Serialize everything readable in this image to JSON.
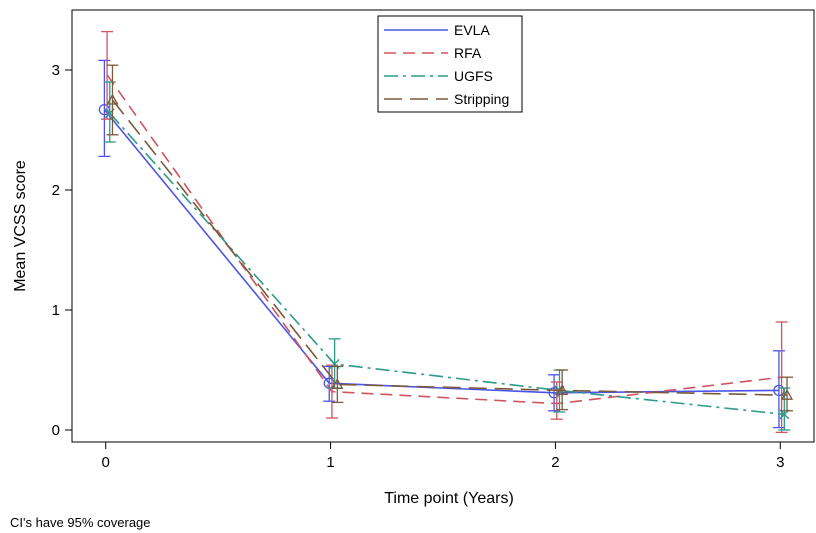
{
  "chart_data": {
    "type": "line",
    "title": "",
    "xlabel": "Time point (Years)",
    "ylabel": "Mean VCSS score",
    "x_ticks": [
      0,
      1,
      2,
      3
    ],
    "y_ticks": [
      0,
      1,
      2,
      3
    ],
    "xlim": [
      -0.15,
      3.15
    ],
    "ylim": [
      -0.1,
      3.5
    ],
    "grid": false,
    "legend_position": "top-center",
    "series": [
      {
        "name": "EVLA",
        "color": "#4a55e8",
        "dash": "solid",
        "marker": "circle",
        "offset": -0.006,
        "x": [
          0,
          1,
          2,
          3
        ],
        "y": [
          2.67,
          0.39,
          0.31,
          0.33
        ],
        "ci_low": [
          2.28,
          0.24,
          0.16,
          0.02
        ],
        "ci_high": [
          3.08,
          0.53,
          0.46,
          0.66
        ]
      },
      {
        "name": "RFA",
        "color": "#d05460",
        "dash": "dashed",
        "marker": "none",
        "offset": 0.006,
        "x": [
          0,
          1,
          2,
          3
        ],
        "y": [
          2.96,
          0.32,
          0.22,
          0.44
        ],
        "ci_low": [
          2.59,
          0.1,
          0.09,
          -0.02
        ],
        "ci_high": [
          3.32,
          0.54,
          0.4,
          0.9
        ]
      },
      {
        "name": "UGFS",
        "color": "#2e9a8a",
        "dash": "dashdot",
        "marker": "x",
        "offset": 0.018,
        "x": [
          0,
          1,
          2,
          3
        ],
        "y": [
          2.64,
          0.55,
          0.33,
          0.13
        ],
        "ci_low": [
          2.4,
          0.35,
          0.15,
          0.0
        ],
        "ci_high": [
          2.9,
          0.76,
          0.5,
          0.35
        ]
      },
      {
        "name": "Stripping",
        "color": "#7a5a3a",
        "dash": "longdash",
        "marker": "triangle",
        "offset": 0.03,
        "x": [
          0,
          1,
          2,
          3
        ],
        "y": [
          2.75,
          0.38,
          0.33,
          0.29
        ],
        "ci_low": [
          2.46,
          0.23,
          0.17,
          0.16
        ],
        "ci_high": [
          3.04,
          0.53,
          0.5,
          0.44
        ]
      }
    ]
  },
  "footnote": "CI's have 95% coverage"
}
